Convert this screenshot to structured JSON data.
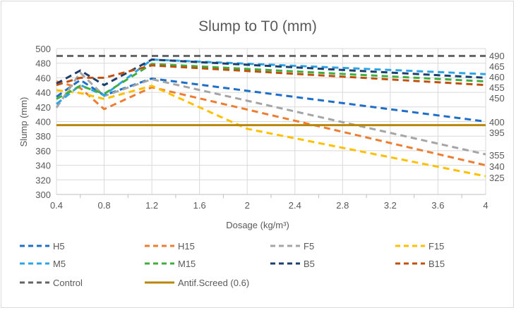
{
  "chart_data": {
    "type": "line",
    "title": "Slump to T0 (mm)",
    "xlabel": "Dosage (kg/m³)",
    "ylabel": "Slump (mm)",
    "xlim": [
      0.4,
      4
    ],
    "ylim": [
      300,
      500
    ],
    "xticks": [
      "0.4",
      "0.8",
      "1.2",
      "1.6",
      "2",
      "2.4",
      "2.8",
      "3.2",
      "3.6",
      "4"
    ],
    "yticks": [
      "300",
      "320",
      "340",
      "360",
      "380",
      "400",
      "420",
      "440",
      "460",
      "480",
      "500"
    ],
    "grid": true,
    "legend_position": "bottom",
    "series": [
      {
        "name": "H5",
        "color": "#1f6fc8",
        "style": "dashed",
        "x": [
          0.4,
          0.6,
          0.8,
          1.2,
          4
        ],
        "y": [
          434,
          457,
          436,
          459,
          400
        ]
      },
      {
        "name": "H15",
        "color": "#ed7d31",
        "style": "dashed",
        "x": [
          0.4,
          0.6,
          0.8,
          1.2,
          4
        ],
        "y": [
          455,
          446,
          417,
          447,
          340
        ]
      },
      {
        "name": "F5",
        "color": "#a5a5a5",
        "style": "dashed",
        "x": [
          0.4,
          0.6,
          0.8,
          1.2,
          4
        ],
        "y": [
          419,
          467,
          435,
          458,
          355
        ]
      },
      {
        "name": "F15",
        "color": "#ffc000",
        "style": "dashed",
        "x": [
          0.4,
          0.6,
          0.8,
          1.2,
          2,
          4
        ],
        "y": [
          443,
          439,
          431,
          449,
          390,
          325
        ]
      },
      {
        "name": "M5",
        "color": "#2ea4e6",
        "style": "dashed",
        "x": [
          0.4,
          0.6,
          0.8,
          1.2,
          4
        ],
        "y": [
          424,
          450,
          436,
          485,
          465
        ]
      },
      {
        "name": "M15",
        "color": "#3fae3f",
        "style": "dashed",
        "x": [
          0.4,
          0.6,
          0.8,
          1.2,
          4
        ],
        "y": [
          431,
          449,
          438,
          479,
          455
        ]
      },
      {
        "name": "B5",
        "color": "#1c3f6e",
        "style": "dashed",
        "x": [
          0.4,
          0.6,
          0.8,
          1.2,
          4
        ],
        "y": [
          452,
          470,
          450,
          485,
          460
        ]
      },
      {
        "name": "B15",
        "color": "#c0500f",
        "style": "dashed",
        "x": [
          0.4,
          0.6,
          0.8,
          1.2,
          4
        ],
        "y": [
          450,
          460,
          460,
          477,
          450
        ]
      },
      {
        "name": "Control",
        "color": "#636363",
        "style": "dashed",
        "x": [
          0.4,
          4
        ],
        "y": [
          490,
          490
        ]
      },
      {
        "name": "Antif.Screed (0.6)",
        "color": "#b8860b",
        "style": "solid",
        "x": [
          0.4,
          4
        ],
        "y": [
          395,
          395
        ]
      }
    ],
    "end_labels": [
      "490",
      "465",
      "460",
      "455",
      "450",
      "400",
      "395",
      "355",
      "340",
      "325"
    ]
  }
}
